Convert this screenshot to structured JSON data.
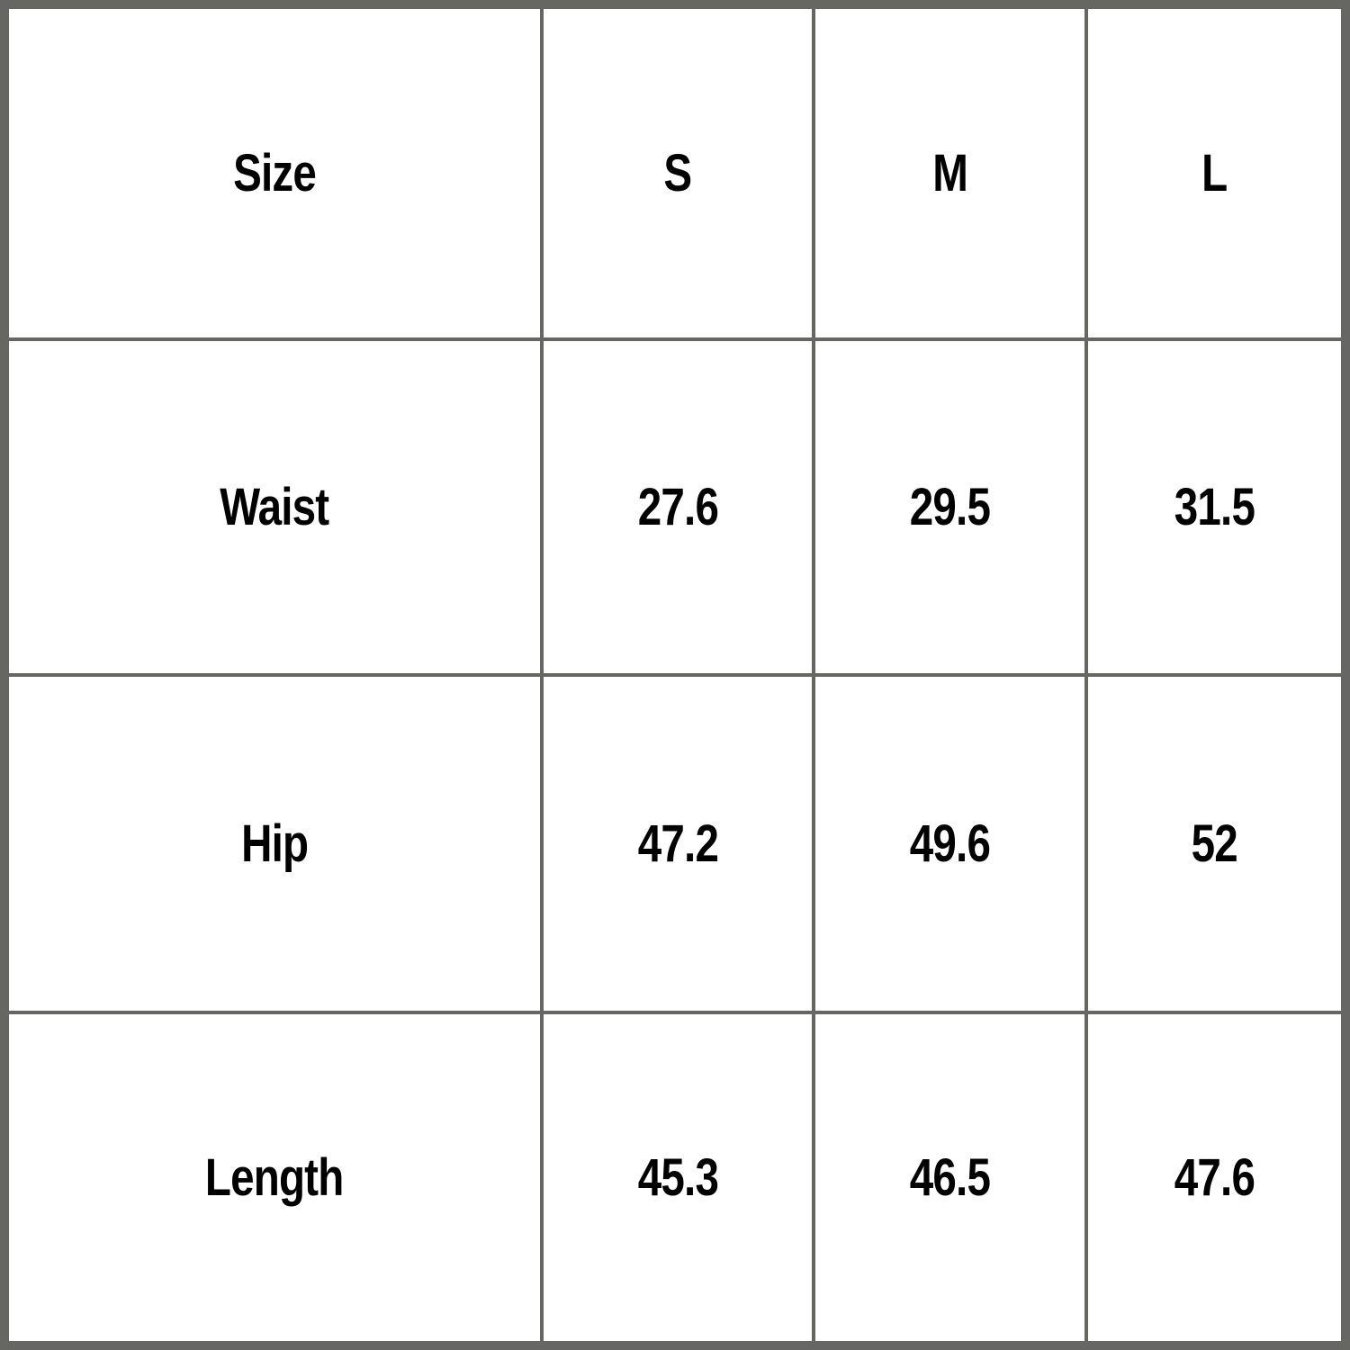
{
  "table": {
    "header": [
      "Size",
      "S",
      "M",
      "L"
    ],
    "rows": [
      [
        "Waist",
        "27.6",
        "29.5",
        "31.5"
      ],
      [
        "Hip",
        "47.2",
        "49.6",
        "52"
      ],
      [
        "Length",
        "45.3",
        "46.5",
        "47.6"
      ]
    ]
  },
  "colors": {
    "border": "#666663",
    "cell": "#ffffff",
    "text": "#000000"
  }
}
